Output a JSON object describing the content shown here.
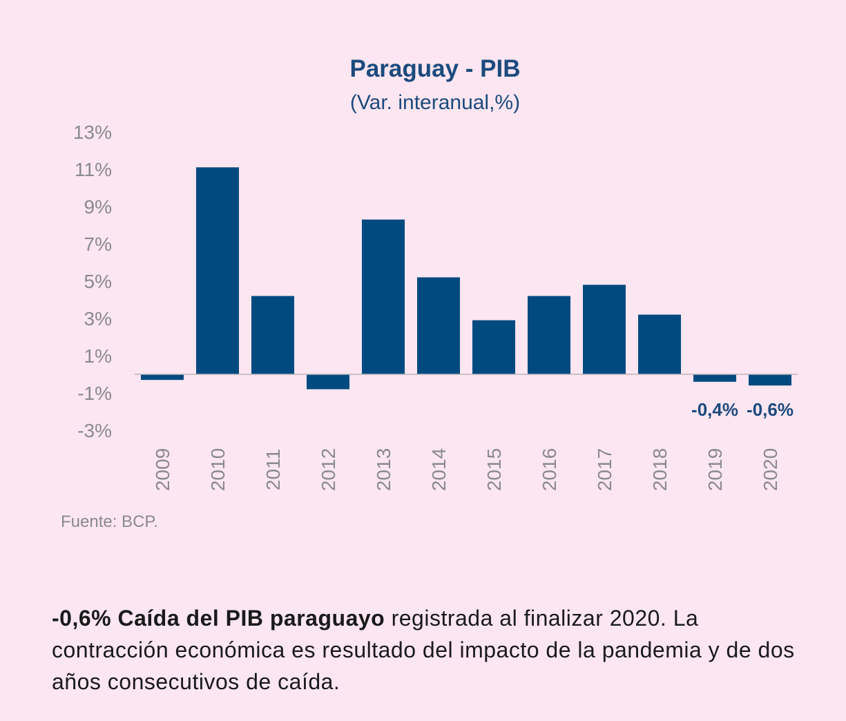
{
  "chart_data": {
    "type": "bar",
    "title": "Paraguay - PIB",
    "subtitle": "(Var. interanual,%)",
    "categories": [
      "2009",
      "2010",
      "2011",
      "2012",
      "2013",
      "2014",
      "2015",
      "2016",
      "2017",
      "2018",
      "2019",
      "2020"
    ],
    "values": [
      -0.3,
      11.1,
      4.2,
      -0.8,
      8.3,
      5.2,
      2.9,
      4.2,
      4.8,
      3.2,
      -0.4,
      -0.6
    ],
    "data_labels": {
      "2019": "-0,4%",
      "2020": "-0,6%"
    },
    "yticks": [
      "13%",
      "11%",
      "9%",
      "7%",
      "5%",
      "3%",
      "1%",
      "-1%",
      "-3%"
    ],
    "ytick_values": [
      13,
      11,
      9,
      7,
      5,
      3,
      1,
      -1,
      -3
    ],
    "ylim": [
      -3,
      13
    ],
    "xlabel": "",
    "ylabel": "",
    "grid": false,
    "colors": {
      "bar": "#004a80",
      "axis_text": "#8a8a8a",
      "label": "#1c4a7d",
      "baseline": "#b9b3b7"
    }
  },
  "source": "Fuente: BCP.",
  "caption": {
    "bold": "-0,6% Caída del PIB paraguayo",
    "rest": " registrada al finalizar 2020. La contracción económica es resultado del impacto de la pandemia y de dos años consecutivos de caída."
  }
}
